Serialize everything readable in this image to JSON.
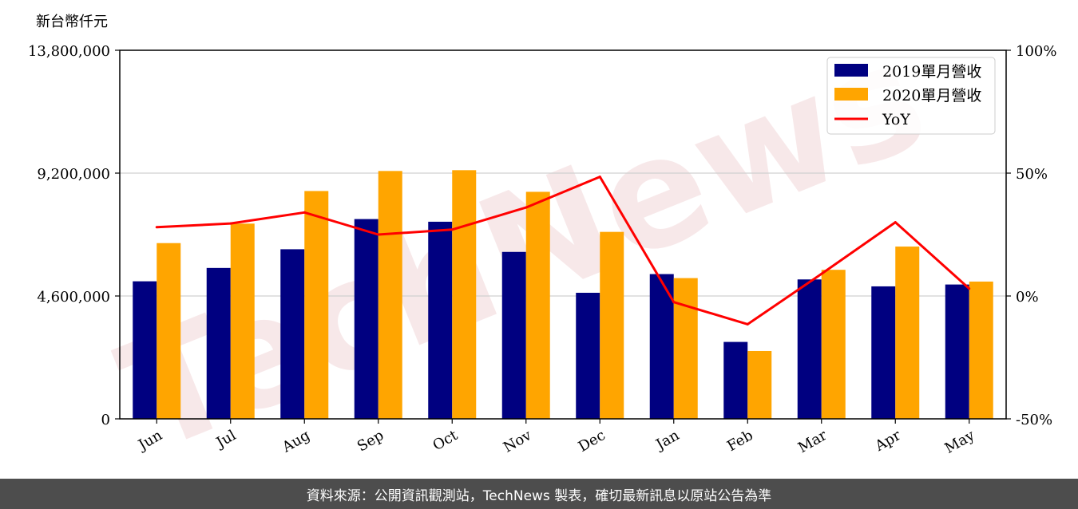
{
  "watermark": "TechNews",
  "footer": {
    "source_text": "資料來源：公開資訊觀測站，TechNews 製表，確切最新訊息以原站公告為準"
  },
  "chart_data": {
    "type": "bar",
    "unit_label": "新台幣仟元",
    "categories": [
      "Jun",
      "Jul",
      "Aug",
      "Sep",
      "Oct",
      "Nov",
      "Dec",
      "Jan",
      "Feb",
      "Mar",
      "Apr",
      "May"
    ],
    "series": [
      {
        "name": "2019單月營收",
        "type": "bar",
        "axis": "left",
        "color": "#000080",
        "values": [
          5150000,
          5650000,
          6350000,
          7480000,
          7380000,
          6250000,
          4720000,
          5420000,
          2880000,
          5220000,
          4960000,
          5030000
        ]
      },
      {
        "name": "2020單月營收",
        "type": "bar",
        "axis": "left",
        "color": "#ffa500",
        "values": [
          6580000,
          7310000,
          8530000,
          9280000,
          9310000,
          8500000,
          7000000,
          5270000,
          2540000,
          5580000,
          6450000,
          5140000
        ]
      },
      {
        "name": "YoY",
        "type": "line",
        "axis": "right",
        "color": "#ff0000",
        "values": [
          28,
          29.5,
          34,
          25,
          27,
          36,
          48.5,
          -2.5,
          -11.5,
          9,
          30,
          3
        ]
      }
    ],
    "y_left": {
      "min": 0,
      "max": 13800000,
      "ticks": [
        0,
        4600000,
        9200000,
        13800000
      ],
      "tick_labels": [
        "0",
        "4,600,000",
        "9,200,000",
        "13,800,000"
      ]
    },
    "y_right": {
      "min": -50,
      "max": 100,
      "ticks": [
        -50,
        0,
        50,
        100
      ],
      "tick_labels": [
        "-50%",
        "0%",
        "50%",
        "100%"
      ]
    },
    "grid": "horizontal",
    "legend_position": "top-right"
  }
}
